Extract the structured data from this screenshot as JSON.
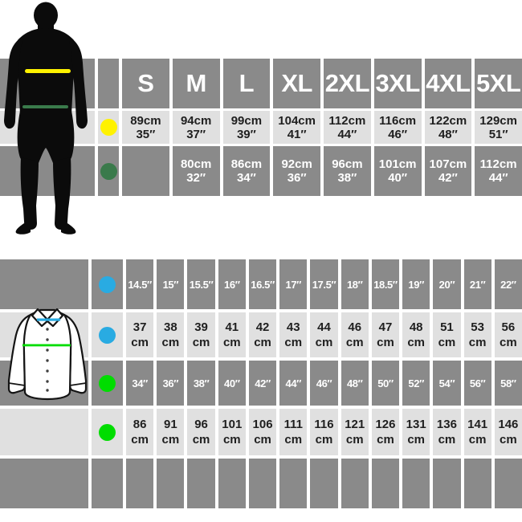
{
  "colors": {
    "cell_gray": "#8a8a8a",
    "cell_light": "#e0e0e0",
    "text_dark": "#1f1f1f",
    "text_white": "#ffffff",
    "dot_yellow": "#fff200",
    "dot_dark_green": "#3a7a4b",
    "dot_blue": "#29abe2",
    "dot_green": "#00dd00",
    "silhouette_black": "#0b0b0b"
  },
  "figures": {
    "man_lines": [
      {
        "name": "chest-line",
        "color_key": "dot_yellow"
      },
      {
        "name": "waist-line",
        "color_key": "dot_dark_green"
      }
    ],
    "shirt_lines": [
      {
        "name": "collar-line",
        "color_key": "dot_blue"
      },
      {
        "name": "chest-line",
        "color_key": "dot_green"
      }
    ]
  },
  "chart_data": [
    {
      "type": "table",
      "name": "body-measurement-size-chart",
      "columns": [
        "S",
        "M",
        "L",
        "XL",
        "2XL",
        "3XL",
        "4XL",
        "5XL"
      ],
      "rows": [
        {
          "dot": "yellow",
          "line": "chest-line",
          "shade": "light",
          "values": [
            [
              "89cm",
              "35″"
            ],
            [
              "94cm",
              "37″"
            ],
            [
              "99cm",
              "39″"
            ],
            [
              "104cm",
              "41″"
            ],
            [
              "112cm",
              "44″"
            ],
            [
              "116cm",
              "46″"
            ],
            [
              "122cm",
              "48″"
            ],
            [
              "129cm",
              "51″"
            ]
          ]
        },
        {
          "dot": "dark-green",
          "line": "waist-line",
          "shade": "gray",
          "values": [
            [],
            [
              "80cm",
              "32″"
            ],
            [
              "86cm",
              "34″"
            ],
            [
              "92cm",
              "36″"
            ],
            [
              "96cm",
              "38″"
            ],
            [
              "101cm",
              "40″"
            ],
            [
              "107cm",
              "42″"
            ],
            [
              "112cm",
              "44″"
            ]
          ]
        }
      ]
    },
    {
      "type": "table",
      "name": "shirt-collar-chest-size-chart",
      "rows": [
        {
          "dot": "blue",
          "line": "collar-line",
          "shade": "gray",
          "values": [
            [
              "14.5″"
            ],
            [
              "15″"
            ],
            [
              "15.5″"
            ],
            [
              "16″"
            ],
            [
              "16.5″"
            ],
            [
              "17″"
            ],
            [
              "17.5″"
            ],
            [
              "18″"
            ],
            [
              "18.5″"
            ],
            [
              "19″"
            ],
            [
              "20″"
            ],
            [
              "21″"
            ],
            [
              "22″"
            ]
          ]
        },
        {
          "dot": "blue",
          "line": "collar-line",
          "shade": "light",
          "values": [
            [
              "37",
              "cm"
            ],
            [
              "38",
              "cm"
            ],
            [
              "39",
              "cm"
            ],
            [
              "41",
              "cm"
            ],
            [
              "42",
              "cm"
            ],
            [
              "43",
              "cm"
            ],
            [
              "44",
              "cm"
            ],
            [
              "46",
              "cm"
            ],
            [
              "47",
              "cm"
            ],
            [
              "48",
              "cm"
            ],
            [
              "51",
              "cm"
            ],
            [
              "53",
              "cm"
            ],
            [
              "56",
              "cm"
            ]
          ]
        },
        {
          "dot": "green",
          "line": "chest-line",
          "shade": "gray",
          "values": [
            [
              "34″"
            ],
            [
              "36″"
            ],
            [
              "38″"
            ],
            [
              "40″"
            ],
            [
              "42″"
            ],
            [
              "44″"
            ],
            [
              "46″"
            ],
            [
              "48″"
            ],
            [
              "50″"
            ],
            [
              "52″"
            ],
            [
              "54″"
            ],
            [
              "56″"
            ],
            [
              "58″"
            ]
          ]
        },
        {
          "dot": "green",
          "line": "chest-line",
          "shade": "light",
          "values": [
            [
              "86",
              "cm"
            ],
            [
              "91",
              "cm"
            ],
            [
              "96",
              "cm"
            ],
            [
              "101",
              "cm"
            ],
            [
              "106",
              "cm"
            ],
            [
              "111",
              "cm"
            ],
            [
              "116",
              "cm"
            ],
            [
              "121",
              "cm"
            ],
            [
              "126",
              "cm"
            ],
            [
              "131",
              "cm"
            ],
            [
              "136",
              "cm"
            ],
            [
              "141",
              "cm"
            ],
            [
              "146",
              "cm"
            ]
          ]
        },
        {
          "dot": null,
          "line": null,
          "shade": "gray",
          "values": [
            [],
            [],
            [],
            [],
            [],
            [],
            [],
            [],
            [],
            [],
            [],
            [],
            []
          ]
        }
      ]
    }
  ]
}
